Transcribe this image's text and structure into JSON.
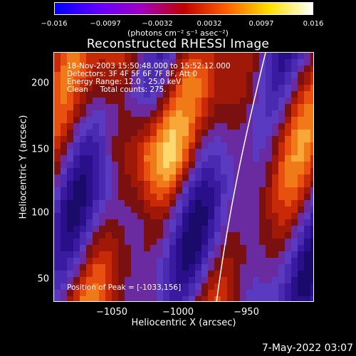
{
  "colorbar": {
    "ticks": [
      "−0.016",
      "−0.0097",
      "−0.0032",
      "0.0032",
      "0.0097",
      "0.016"
    ],
    "units": "(photons cm⁻² s⁻¹ asec⁻²)",
    "colors": [
      "#0000ff",
      "#6000ff",
      "#a000c0",
      "#c00000",
      "#ff6000",
      "#ffe000",
      "#ffffff"
    ]
  },
  "plot": {
    "title": "Reconstructed RHESSI Image",
    "info_lines": [
      "18-Nov-2003 15:50:48.000 to 15:52:12.000",
      "Detectors: 3F 4F 5F 6F 7F 8F, Att 0",
      "Energy Range: 12.0 - 25.0 keV",
      "Clean     Total counts: 275."
    ],
    "peak": "Position of Peak = [-1033,156]",
    "xlabel": "Heliocentric X (arcsec)",
    "ylabel": "Heliocentric Y (arcsec)",
    "xticks": [
      "−1050",
      "−1000",
      "−950"
    ],
    "yticks": [
      "200",
      "150",
      "100",
      "50"
    ]
  },
  "footer": {
    "timestamp": "7-May-2022 03:07"
  }
}
